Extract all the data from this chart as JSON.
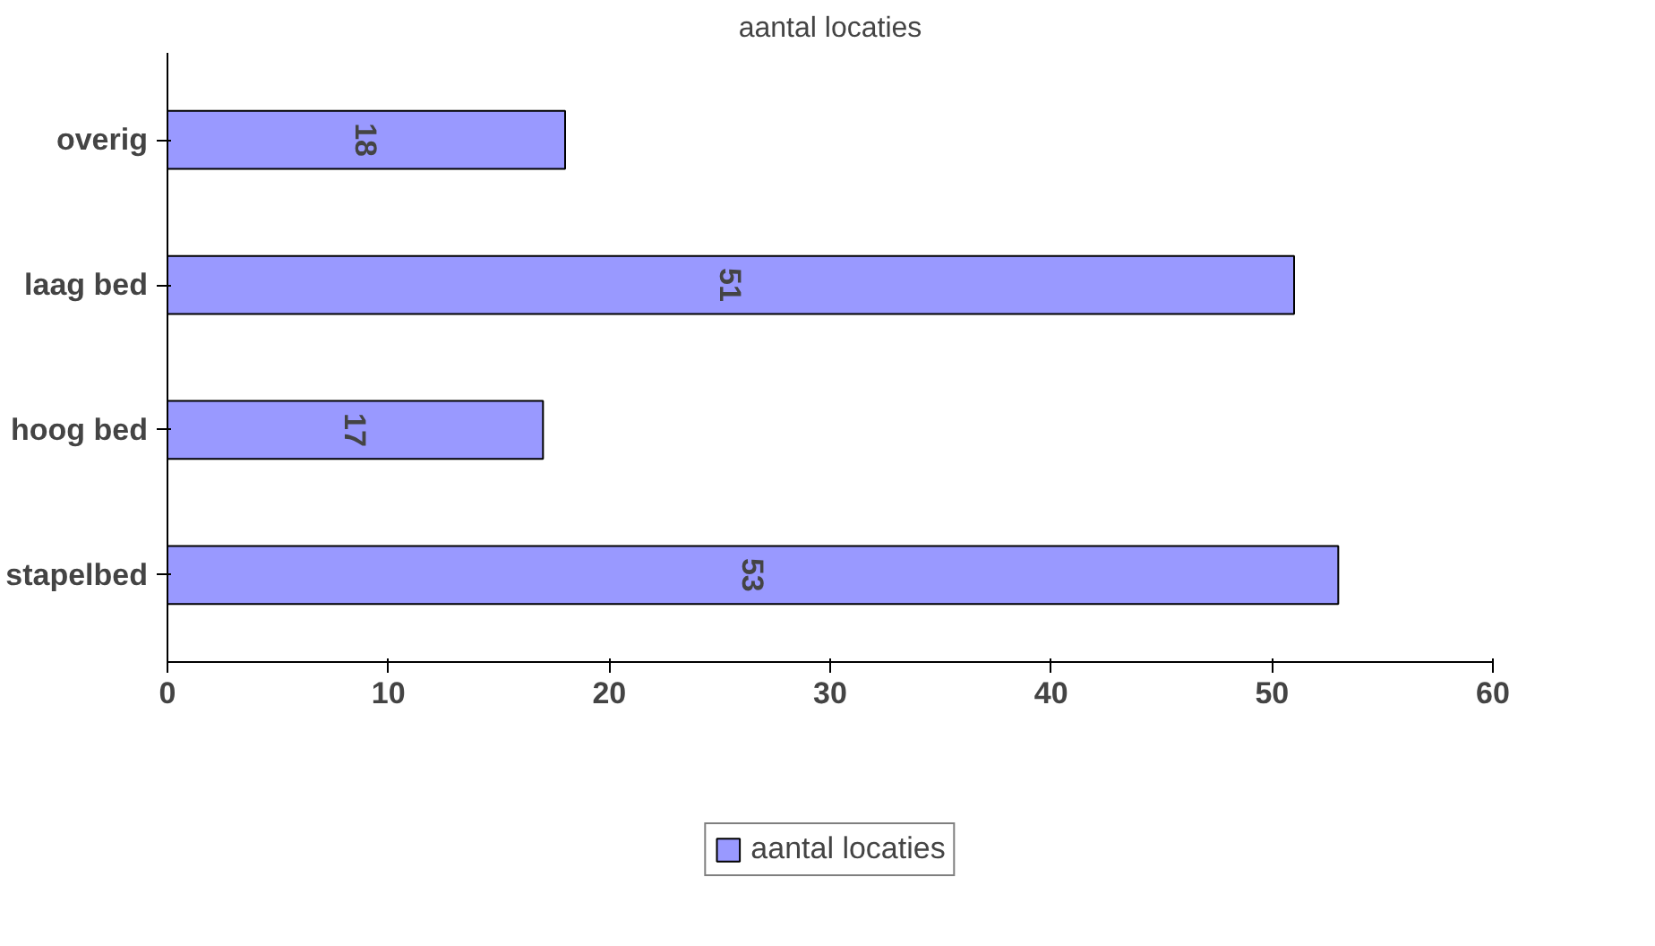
{
  "chart_data": {
    "type": "bar",
    "orientation": "horizontal",
    "title": "aantal locaties",
    "categories": [
      "overig",
      "laag bed",
      "hoog bed",
      "stapelbed"
    ],
    "series": [
      {
        "name": "aantal locaties",
        "color": "#9999ff",
        "values": [
          18,
          51,
          17,
          53
        ]
      }
    ],
    "xlim": [
      0,
      60
    ],
    "xticks": [
      0,
      10,
      20,
      30,
      40,
      50,
      60
    ],
    "grid": false,
    "legend": "bottom",
    "data_labels": true
  }
}
